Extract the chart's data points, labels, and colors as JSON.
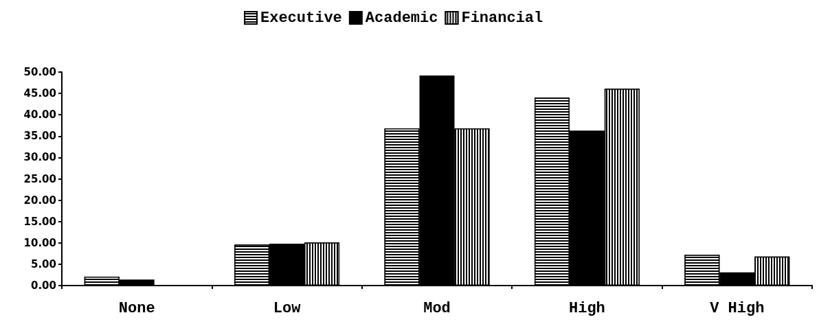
{
  "chart_data": {
    "type": "bar",
    "categories": [
      "None",
      "Low",
      "Mod",
      "High",
      "V High"
    ],
    "series": [
      {
        "name": "Executive",
        "color": "#000000",
        "values": [
          2.1,
          9.6,
          36.8,
          44.0,
          7.2
        ]
      },
      {
        "name": "Academic",
        "color": "#000000",
        "values": [
          1.4,
          9.8,
          49.2,
          36.3,
          3.1
        ]
      },
      {
        "name": "Financial",
        "color": "#000000",
        "values": [
          0,
          10.1,
          36.8,
          46.1,
          6.8
        ]
      }
    ],
    "ylim": [
      0,
      50
    ],
    "yticks": [
      {
        "value": 0,
        "label": "0.00"
      },
      {
        "value": 5,
        "label": "5.00"
      },
      {
        "value": 10,
        "label": "10.00"
      },
      {
        "value": 15,
        "label": "15.00"
      },
      {
        "value": 20,
        "label": "20.00"
      },
      {
        "value": 25,
        "label": "25.00"
      },
      {
        "value": 30,
        "label": "30.00"
      },
      {
        "value": 35,
        "label": "35.00"
      },
      {
        "value": 40,
        "label": "40.00"
      },
      {
        "value": 45,
        "label": "45.00"
      },
      {
        "value": 50,
        "label": "50.00"
      }
    ],
    "grid": false,
    "legend": "top"
  }
}
